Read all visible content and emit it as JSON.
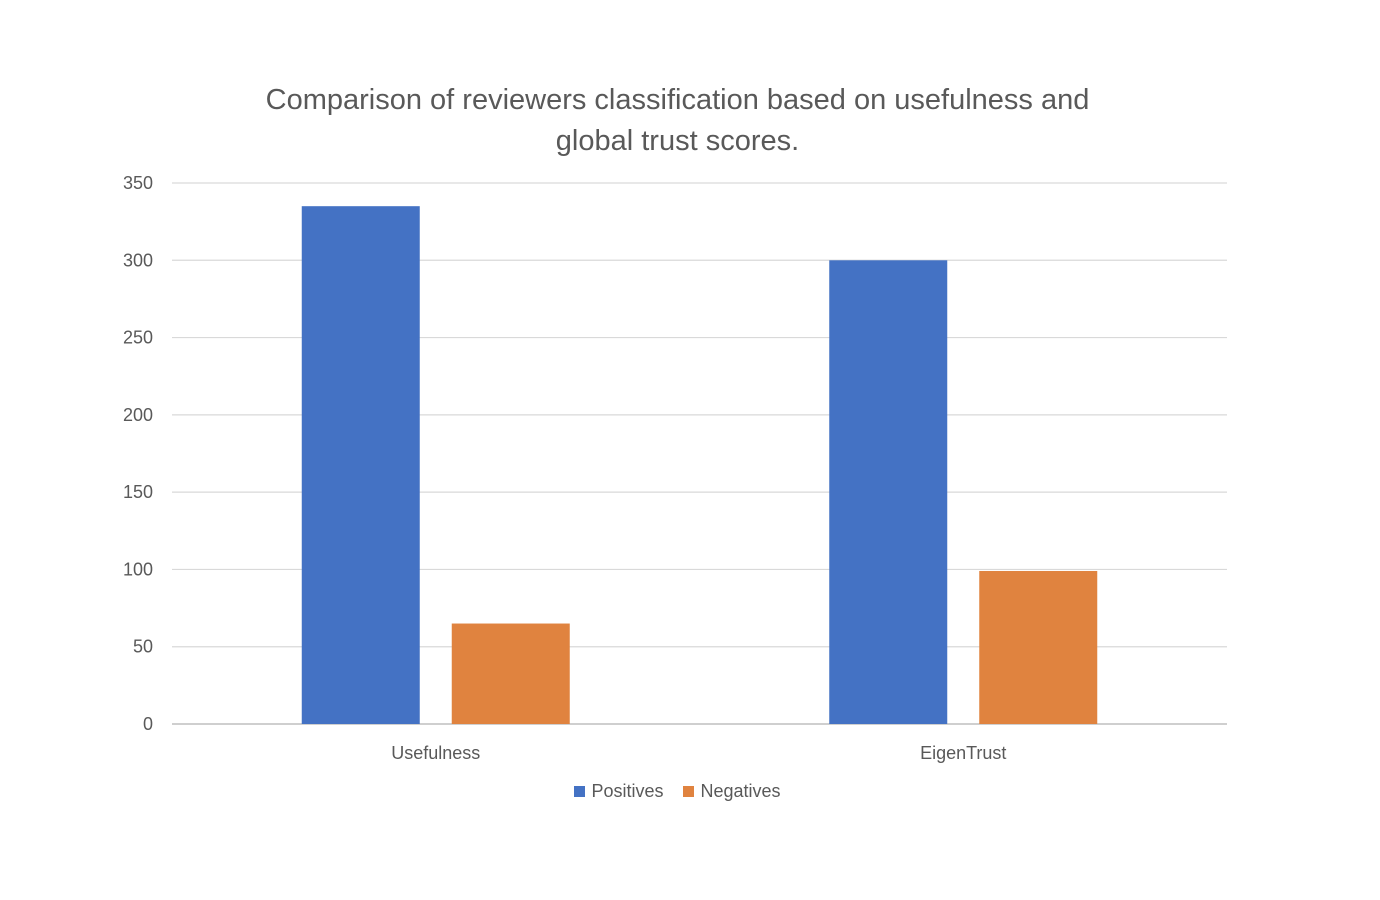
{
  "chart_data": {
    "type": "bar",
    "title_lines": [
      "Comparison of reviewers classification based on usefulness and",
      "global trust scores."
    ],
    "categories": [
      "Usefulness",
      "EigenTrust"
    ],
    "series": [
      {
        "name": "Positives",
        "color": "#4472C4",
        "values": [
          335,
          300
        ]
      },
      {
        "name": "Negatives",
        "color": "#E0833F",
        "values": [
          65,
          99
        ]
      }
    ],
    "ylim": [
      0,
      350
    ],
    "yticks": [
      "0",
      "50",
      "100",
      "150",
      "200",
      "250",
      "300",
      "350"
    ],
    "xlabel": "",
    "ylabel": "",
    "grid": true,
    "legend_position": "bottom"
  }
}
